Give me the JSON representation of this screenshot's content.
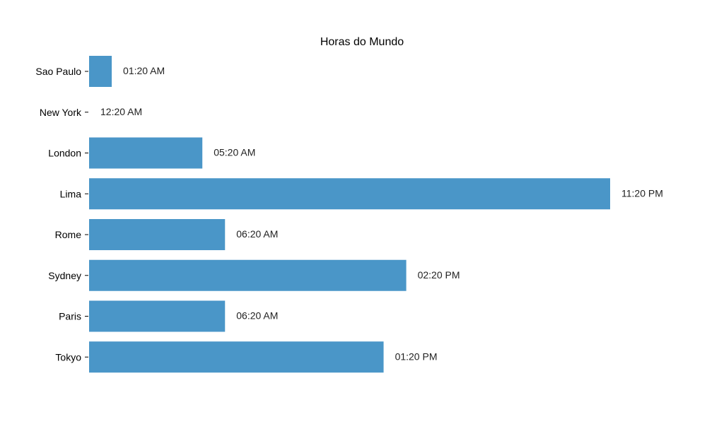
{
  "chart_data": {
    "type": "bar",
    "orientation": "horizontal",
    "title": "Horas do Mundo",
    "xlabel": "",
    "ylabel": "",
    "categories": [
      "Sao Paulo",
      "New York",
      "London",
      "Lima",
      "Rome",
      "Sydney",
      "Paris",
      "Tokyo"
    ],
    "values": [
      1,
      0,
      5,
      23,
      6,
      14,
      6,
      13
    ],
    "value_labels": [
      "01:20 AM",
      "12:20 AM",
      "05:20 AM",
      "11:20 PM",
      "06:20 AM",
      "02:20 PM",
      "06:20 AM",
      "01:20 PM"
    ],
    "xlim": [
      0,
      23
    ],
    "bar_color": "#4a96c8",
    "grid": false,
    "legend": "none",
    "x_axis_visible": false
  }
}
